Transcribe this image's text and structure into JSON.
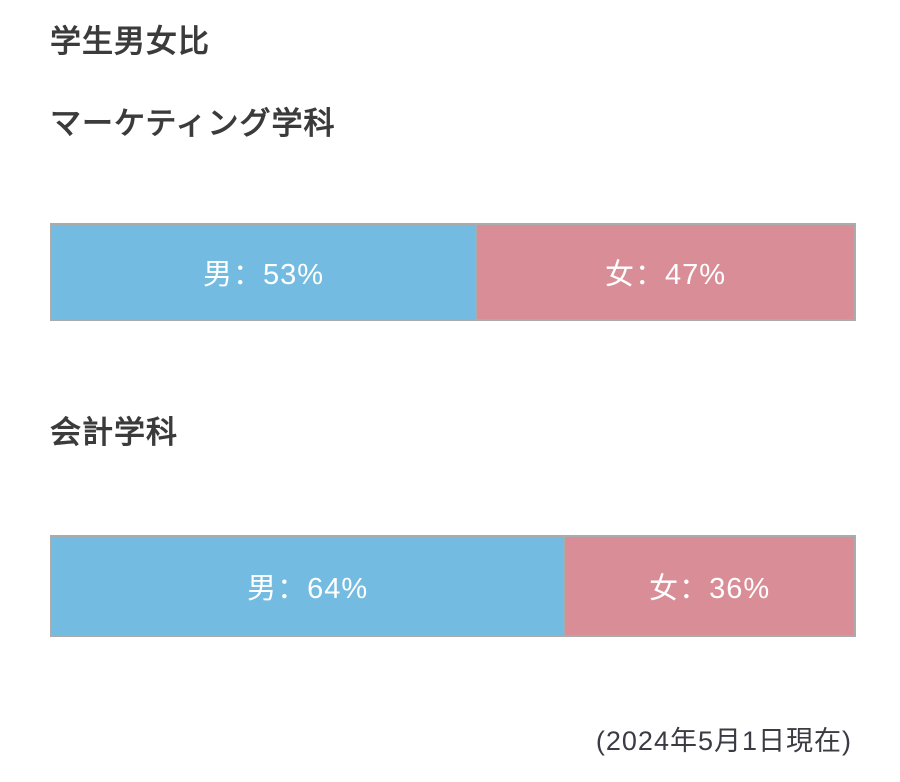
{
  "page": {
    "title": "学生男女比",
    "sections": [
      {
        "heading": "マーケティング学科",
        "segments": [
          {
            "name": "male",
            "label": "男：53%",
            "pct": 53,
            "color": "#74BBE1"
          },
          {
            "name": "female",
            "label": "女：47%",
            "pct": 47,
            "color": "#D98D97"
          }
        ]
      },
      {
        "heading": "会計学科",
        "segments": [
          {
            "name": "male",
            "label": "男：64%",
            "pct": 64,
            "color": "#74BBE1"
          },
          {
            "name": "female",
            "label": "女：36%",
            "pct": 36,
            "color": "#D98D97"
          }
        ]
      }
    ],
    "footer_note": "(2024年5月1日現在)"
  },
  "colors": {
    "male": "#74BBE1",
    "female": "#D98D97",
    "bar_border": "#ABABAB",
    "heading_text": "#3B3B3B",
    "segment_label_text": "#FFFFFF",
    "note_text": "#3B3B43",
    "background": "#FFFFFF"
  },
  "chart_data": {
    "type": "bar",
    "orientation": "horizontal",
    "stacked": true,
    "unit": "%",
    "title": "学生男女比",
    "categories": [
      "マーケティング学科",
      "会計学科"
    ],
    "series": [
      {
        "name": "男",
        "color": "#74BBE1",
        "values": [
          53,
          64
        ]
      },
      {
        "name": "女",
        "color": "#D98D97",
        "values": [
          47,
          36
        ]
      }
    ],
    "data_labels": [
      [
        "男：53%",
        "女：47%"
      ],
      [
        "男：64%",
        "女：36%"
      ]
    ],
    "xlim": [
      0,
      100
    ],
    "grid": false,
    "legend": "none (labels inside segments)",
    "annotation": "(2024年5月1日現在)"
  }
}
